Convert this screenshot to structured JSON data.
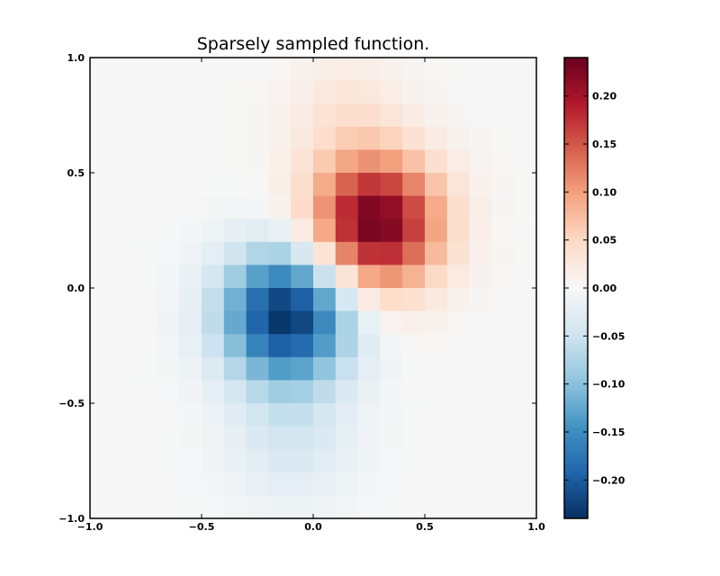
{
  "chart_data": {
    "type": "heatmap",
    "title": "Sparsely sampled function.",
    "xlabel": "",
    "ylabel": "",
    "xlim": [
      -1.0,
      1.0
    ],
    "ylim": [
      -1.0,
      1.0
    ],
    "rows": 20,
    "cols": 20,
    "x_ticks": [
      "−1.0",
      "−0.5",
      "0.0",
      "0.5",
      "1.0"
    ],
    "y_ticks": [
      "1.0",
      "0.5",
      "0.0",
      "−0.5",
      "−1.0"
    ],
    "colorbar": {
      "colormap": "RdBu_r",
      "range": [
        -0.24,
        0.24
      ],
      "ticks": [
        "0.20",
        "0.15",
        "0.10",
        "0.05",
        "0.00",
        "−0.05",
        "−0.10",
        "−0.15",
        "−0.20"
      ]
    },
    "colormap_stops": [
      "#053061",
      "#2166ac",
      "#4393c3",
      "#92c5de",
      "#d1e5f0",
      "#f7f7f7",
      "#fddbc7",
      "#f4a582",
      "#d6604d",
      "#b2182b",
      "#67001f"
    ],
    "grid": false,
    "legend": "none"
  }
}
